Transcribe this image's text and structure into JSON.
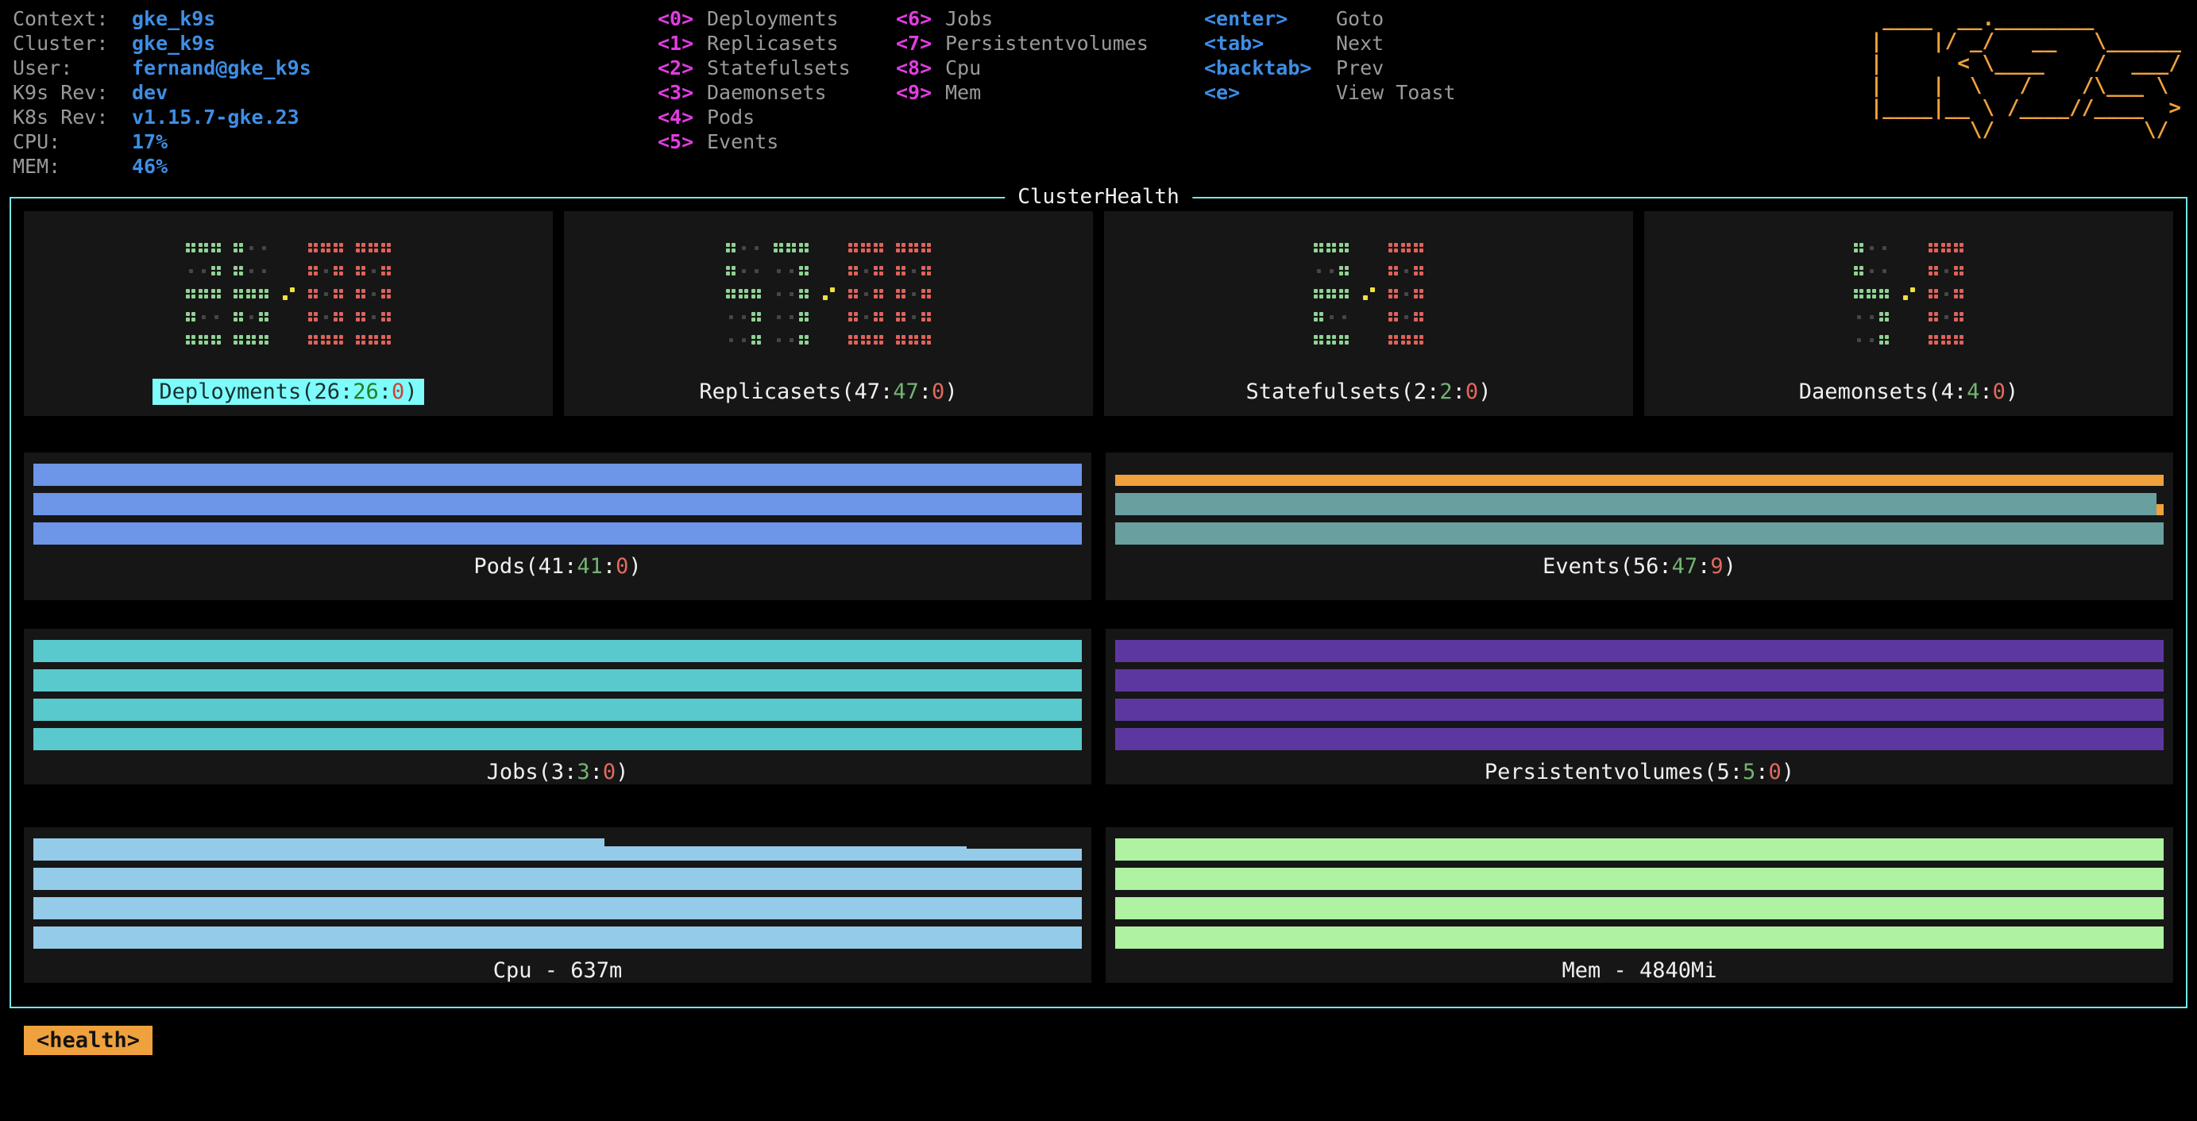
{
  "header": {
    "info": [
      {
        "label": "Context: ",
        "value": "gke_k9s"
      },
      {
        "label": "Cluster: ",
        "value": "gke_k9s"
      },
      {
        "label": "User: ",
        "value": "fernand@gke_k9s"
      },
      {
        "label": "K9s Rev: ",
        "value": "dev"
      },
      {
        "label": "K8s Rev: ",
        "value": "v1.15.7-gke.23"
      },
      {
        "label": "CPU: ",
        "value": "17%"
      },
      {
        "label": "MEM: ",
        "value": "46%"
      }
    ],
    "menu_col1": [
      {
        "key": "<0>",
        "label": "Deployments"
      },
      {
        "key": "<1>",
        "label": "Replicasets"
      },
      {
        "key": "<2>",
        "label": "Statefulsets"
      },
      {
        "key": "<3>",
        "label": "Daemonsets"
      },
      {
        "key": "<4>",
        "label": "Pods"
      },
      {
        "key": "<5>",
        "label": "Events"
      }
    ],
    "menu_col2": [
      {
        "key": "<6>",
        "label": "Jobs"
      },
      {
        "key": "<7>",
        "label": "Persistentvolumes"
      },
      {
        "key": "<8>",
        "label": "Cpu"
      },
      {
        "key": "<9>",
        "label": "Mem"
      }
    ],
    "menu_col3": [
      {
        "key": "<enter>",
        "label": "Goto"
      },
      {
        "key": "<tab>",
        "label": "Next"
      },
      {
        "key": "<backtab>",
        "label": "Prev"
      },
      {
        "key": "<e>",
        "label": "View Toast"
      }
    ],
    "logo_lines": [
      " ____  __.________       ",
      "|    |/ _/   __   \\______",
      "|      < \\____    /  ___/",
      "|    |  \\   /    /\\___ \\ ",
      "|____|__ \\ /____//____  >",
      "        \\/            \\/ "
    ]
  },
  "cluster_health": {
    "title": "ClusterHealth",
    "tiles": [
      {
        "name": "Deployments",
        "selected": true,
        "digits": {
          "ok": "26",
          "err": "00"
        },
        "label": {
          "p1": "Deployments(26:",
          "ok": "26",
          "p2": ":",
          "err": "0",
          "p3": ")"
        }
      },
      {
        "name": "Replicasets",
        "selected": false,
        "digits": {
          "ok": "47",
          "err": "00"
        },
        "label": {
          "p1": "Replicasets(47:",
          "ok": "47",
          "p2": ":",
          "err": "0",
          "p3": ")"
        }
      },
      {
        "name": "Statefulsets",
        "selected": false,
        "digits": {
          "ok": "2",
          "err": "0"
        },
        "label": {
          "p1": "Statefulsets(2:",
          "ok": "2",
          "p2": ":",
          "err": "0",
          "p3": ")"
        }
      },
      {
        "name": "Daemonsets",
        "selected": false,
        "digits": {
          "ok": "4",
          "err": "0"
        },
        "label": {
          "p1": "Daemonsets(4:",
          "ok": "4",
          "p2": ":",
          "err": "0",
          "p3": ")"
        }
      }
    ],
    "panels": {
      "pods": {
        "label": {
          "p1": "Pods(41:",
          "ok": "41",
          "p2": ":",
          "err": "0",
          "p3": ")"
        },
        "bars": [
          [
            {
              "c": "pods_blue",
              "w": 100,
              "h": 28
            }
          ],
          [
            {
              "c": "pods_blue",
              "w": 100,
              "h": 28
            }
          ],
          [
            {
              "c": "pods_blue",
              "w": 100,
              "h": 28
            }
          ]
        ]
      },
      "events": {
        "label": {
          "p1": "Events(56:",
          "ok": "47",
          "p2": ":",
          "err": "9",
          "p3": ")"
        },
        "bars": [
          [
            {
              "c": "events_orange",
              "w": 100,
              "h": 14
            }
          ],
          [
            {
              "c": "events_teal",
              "w": 99.3,
              "h": 28
            },
            {
              "c": "events_orange",
              "w": 0.7,
              "h": 14
            }
          ],
          [
            {
              "c": "events_teal",
              "w": 100,
              "h": 28
            }
          ]
        ]
      },
      "jobs": {
        "label": {
          "p1": "Jobs(3:",
          "ok": "3",
          "p2": ":",
          "err": "0",
          "p3": ")"
        },
        "bars": [
          [
            {
              "c": "jobs_turquoise",
              "w": 100,
              "h": 28
            }
          ],
          [
            {
              "c": "jobs_turquoise",
              "w": 100,
              "h": 28
            }
          ],
          [
            {
              "c": "jobs_turquoise",
              "w": 100,
              "h": 28
            }
          ],
          [
            {
              "c": "jobs_turquoise",
              "w": 100,
              "h": 28
            }
          ]
        ]
      },
      "persistentvolumes": {
        "label": {
          "p1": "Persistentvolumes(5:",
          "ok": "5",
          "p2": ":",
          "err": "0",
          "p3": ")"
        },
        "bars": [
          [
            {
              "c": "pv_purple",
              "w": 100,
              "h": 28
            }
          ],
          [
            {
              "c": "pv_purple",
              "w": 100,
              "h": 28
            }
          ],
          [
            {
              "c": "pv_purple",
              "w": 100,
              "h": 28
            }
          ],
          [
            {
              "c": "pv_purple",
              "w": 100,
              "h": 28
            }
          ]
        ]
      },
      "cpu": {
        "label": {
          "p1": "Cpu - 637m"
        },
        "bars": [
          [
            {
              "c": "cpu_skyblue",
              "w": 54.5,
              "h": 28
            },
            {
              "c": "cpu_skyblue",
              "w": 34.5,
              "h": 18
            },
            {
              "c": "cpu_skyblue",
              "w": 11,
              "h": 15
            }
          ],
          [
            {
              "c": "cpu_skyblue",
              "w": 100,
              "h": 28
            }
          ],
          [
            {
              "c": "cpu_skyblue",
              "w": 100,
              "h": 28
            }
          ],
          [
            {
              "c": "cpu_skyblue",
              "w": 100,
              "h": 28
            }
          ]
        ]
      },
      "mem": {
        "label": {
          "p1": "Mem - 4840Mi"
        },
        "bars": [
          [
            {
              "c": "mem_green",
              "w": 100,
              "h": 28
            }
          ],
          [
            {
              "c": "mem_green",
              "w": 100,
              "h": 28
            }
          ],
          [
            {
              "c": "mem_green",
              "w": 100,
              "h": 28
            }
          ],
          [
            {
              "c": "mem_green",
              "w": 100,
              "h": 28
            }
          ]
        ]
      }
    }
  },
  "footer": {
    "badge": "<health>"
  },
  "colors": {
    "accent_blue": "#3e8ee5",
    "key_magenta": "#e23de2",
    "logo_orange": "#efa13d",
    "border_cyan": "#74e6e6",
    "select_cyan": "#7efcfc",
    "text_gray": "#9a9a9a",
    "ok_green": "#74b472",
    "err_red": "#e2695e",
    "dot_green": "#8fd393",
    "dot_red": "#e0625a",
    "dot_dim": "#464646",
    "dot_yellow": "#f0e13c",
    "pods_blue": "#6d95e8",
    "events_teal": "#6a9fa0",
    "events_orange": "#efa13d",
    "jobs_turquoise": "#59c9cd",
    "pv_purple": "#5d37a0",
    "cpu_skyblue": "#93cbe9",
    "mem_green": "#aef2a2",
    "panel_bg": "#161616"
  }
}
